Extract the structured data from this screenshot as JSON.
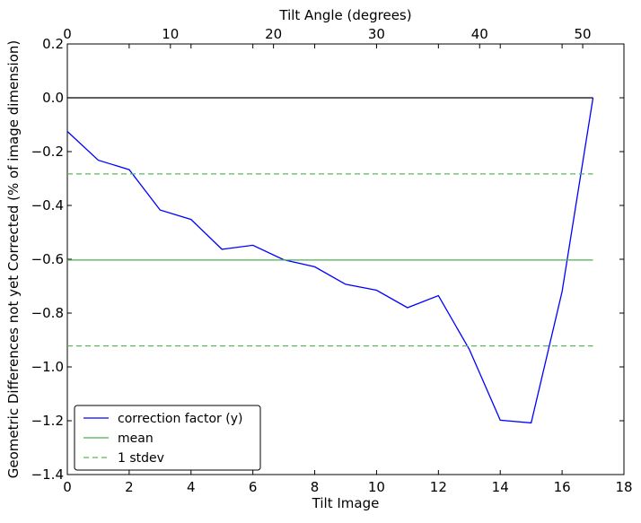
{
  "chart_data": {
    "type": "line",
    "xlabel": "Tilt Image",
    "ylabel": "Geometric Differences not yet Corrected (% of image dimension)",
    "x2label": "Tilt Angle (degrees)",
    "xlim": [
      0,
      18
    ],
    "ylim": [
      -1.4,
      0.2
    ],
    "x2lim": [
      0,
      54
    ],
    "x_ticks": [
      0,
      2,
      4,
      6,
      8,
      10,
      12,
      14,
      16,
      18
    ],
    "y_ticks": [
      0.2,
      0.0,
      -0.2,
      -0.4,
      -0.6,
      -0.8,
      -1.0,
      -1.2,
      -1.4
    ],
    "y_tick_labels": [
      "0.2",
      "0.0",
      "−0.2",
      "−0.4",
      "−0.6",
      "−0.8",
      "−1.0",
      "−1.2",
      "−1.4"
    ],
    "x2_ticks": [
      0,
      10,
      20,
      30,
      40,
      50
    ],
    "grid": false,
    "legend_position": "lower-left",
    "zero_line": {
      "y": 0.0,
      "x": [
        0,
        17
      ],
      "color": "#000000"
    },
    "series": [
      {
        "name": "correction factor (y)",
        "style": "solid",
        "color": "#0000ff",
        "x": [
          0,
          1,
          2,
          3,
          4,
          5,
          6,
          7,
          8,
          9,
          10,
          11,
          12,
          13,
          14,
          15,
          16,
          17
        ],
        "values": [
          -0.125,
          -0.232,
          -0.267,
          -0.417,
          -0.452,
          -0.563,
          -0.548,
          -0.602,
          -0.628,
          -0.693,
          -0.715,
          -0.78,
          -0.735,
          -0.935,
          -1.198,
          -1.208,
          -0.72,
          0.0
        ]
      },
      {
        "name": "mean",
        "style": "solid",
        "color": "#4caf50",
        "x": [
          0,
          17
        ],
        "values": [
          -0.603,
          -0.603
        ]
      },
      {
        "name": "1 stdev",
        "style": "dashed",
        "color": "#5cb85c",
        "x": [
          0,
          17
        ],
        "values": [
          -0.283,
          -0.283
        ]
      },
      {
        "name": "",
        "style": "dashed",
        "color": "#5cb85c",
        "x": [
          0,
          17
        ],
        "values": [
          -0.922,
          -0.922
        ]
      }
    ]
  }
}
